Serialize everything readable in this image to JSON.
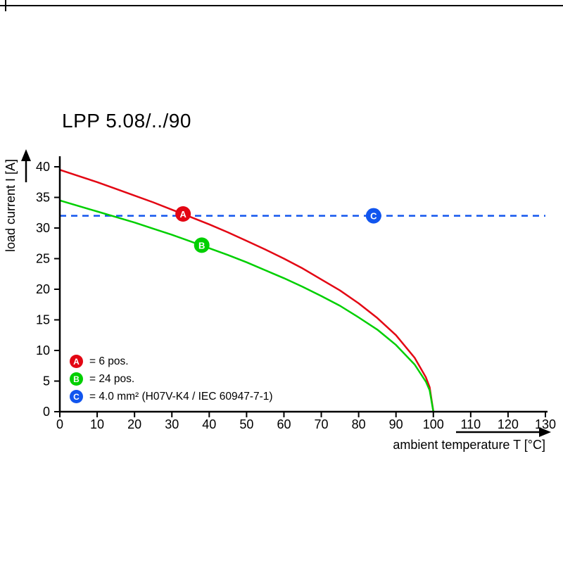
{
  "chart_data": {
    "type": "line",
    "title": "LPP 5.08/../90",
    "xlabel": "ambient temperature T [°C]",
    "ylabel": "load current I [A]",
    "xlim": [
      0,
      130
    ],
    "ylim": [
      0,
      40
    ],
    "x_ticks": [
      0,
      10,
      20,
      30,
      40,
      50,
      60,
      70,
      80,
      90,
      100,
      110,
      120,
      130
    ],
    "y_ticks": [
      0,
      5,
      10,
      15,
      20,
      25,
      30,
      35,
      40
    ],
    "grid": false,
    "legend_position": "lower-left-inside",
    "series": [
      {
        "name": "A",
        "legend_label": "= 6 pos.",
        "color": "#e30613",
        "type": "curve",
        "points": [
          [
            0,
            39.5
          ],
          [
            5,
            38.5
          ],
          [
            10,
            37.5
          ],
          [
            15,
            36.4
          ],
          [
            20,
            35.3
          ],
          [
            25,
            34.2
          ],
          [
            30,
            33.0
          ],
          [
            35,
            31.8
          ],
          [
            40,
            30.6
          ],
          [
            45,
            29.3
          ],
          [
            50,
            27.9
          ],
          [
            55,
            26.5
          ],
          [
            60,
            25.0
          ],
          [
            65,
            23.4
          ],
          [
            70,
            21.6
          ],
          [
            75,
            19.8
          ],
          [
            80,
            17.7
          ],
          [
            85,
            15.3
          ],
          [
            90,
            12.5
          ],
          [
            95,
            8.8
          ],
          [
            98,
            5.6
          ],
          [
            99,
            4.0
          ],
          [
            100,
            0
          ]
        ],
        "marker_at": [
          33,
          32.3
        ]
      },
      {
        "name": "B",
        "legend_label": "= 24 pos.",
        "color": "#00cf00",
        "type": "curve",
        "points": [
          [
            0,
            34.5
          ],
          [
            5,
            33.6
          ],
          [
            10,
            32.7
          ],
          [
            15,
            31.8
          ],
          [
            20,
            30.9
          ],
          [
            25,
            29.9
          ],
          [
            30,
            28.9
          ],
          [
            35,
            27.8
          ],
          [
            40,
            26.7
          ],
          [
            45,
            25.6
          ],
          [
            50,
            24.4
          ],
          [
            55,
            23.1
          ],
          [
            60,
            21.8
          ],
          [
            65,
            20.4
          ],
          [
            70,
            18.9
          ],
          [
            75,
            17.3
          ],
          [
            80,
            15.4
          ],
          [
            85,
            13.4
          ],
          [
            90,
            10.9
          ],
          [
            95,
            7.7
          ],
          [
            98,
            4.9
          ],
          [
            99,
            3.5
          ],
          [
            100,
            0
          ]
        ],
        "marker_at": [
          38,
          27.2
        ]
      },
      {
        "name": "C",
        "legend_label": "= 4.0 mm² (H07V-K4 / IEC 60947-7-1)",
        "color": "#1155ee",
        "type": "dashed-hline",
        "value": 32,
        "span": [
          0,
          130
        ],
        "marker_at": [
          84,
          32
        ]
      }
    ]
  }
}
